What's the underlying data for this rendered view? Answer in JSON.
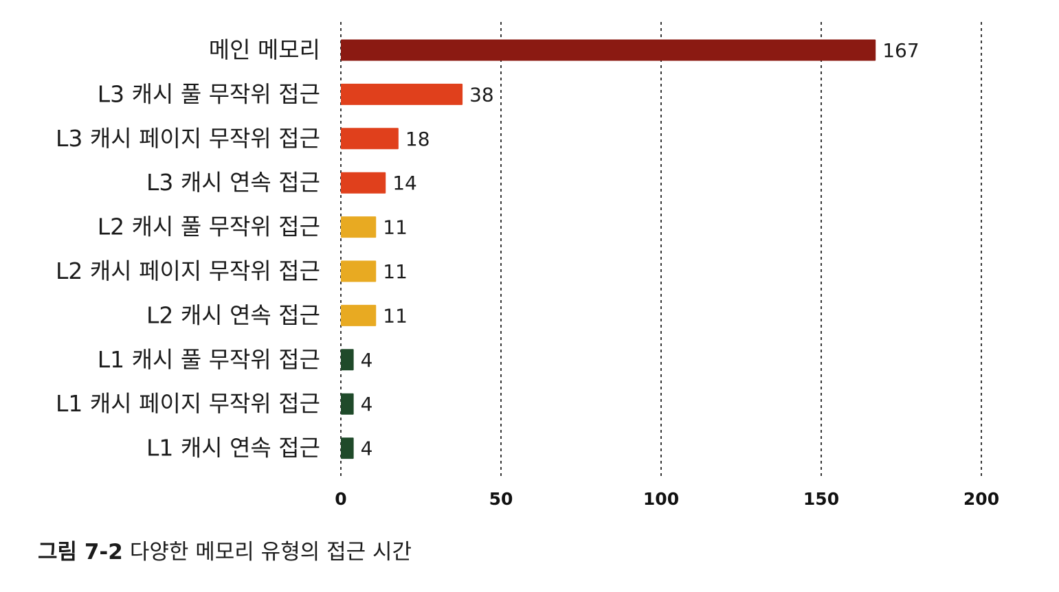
{
  "caption": {
    "figure_number": "그림 7-2",
    "text": "다양한 메모리 유형의 접근 시간"
  },
  "chart_data": {
    "type": "bar",
    "orientation": "horizontal",
    "title": "",
    "xlabel": "",
    "ylabel": "",
    "xlim": [
      0,
      200
    ],
    "x_ticks": [
      0,
      50,
      100,
      150,
      200
    ],
    "grid": "vertical dotted",
    "categories": [
      "메인 메모리",
      "L3 캐시 풀 무작위 접근",
      "L3 캐시 페이지 무작위 접근",
      "L3 캐시 연속 접근",
      "L2 캐시 풀 무작위 접근",
      "L2 캐시 페이지 무작위 접근",
      "L2 캐시 연속 접근",
      "L1 캐시 풀 무작위 접근",
      "L1 캐시 페이지 무작위 접근",
      "L1 캐시 연속 접근"
    ],
    "values": [
      167,
      38,
      18,
      14,
      11,
      11,
      11,
      4,
      4,
      4
    ],
    "data_labels": [
      "167",
      "38",
      "18",
      "14",
      "11",
      "11",
      "11",
      "4",
      "4",
      "4"
    ],
    "bar_colors": [
      "#8b1a12",
      "#e0401c",
      "#e0401c",
      "#e0401c",
      "#e8aa22",
      "#e8aa22",
      "#e8aa22",
      "#1f4a2a",
      "#1f4a2a",
      "#1f4a2a"
    ]
  }
}
